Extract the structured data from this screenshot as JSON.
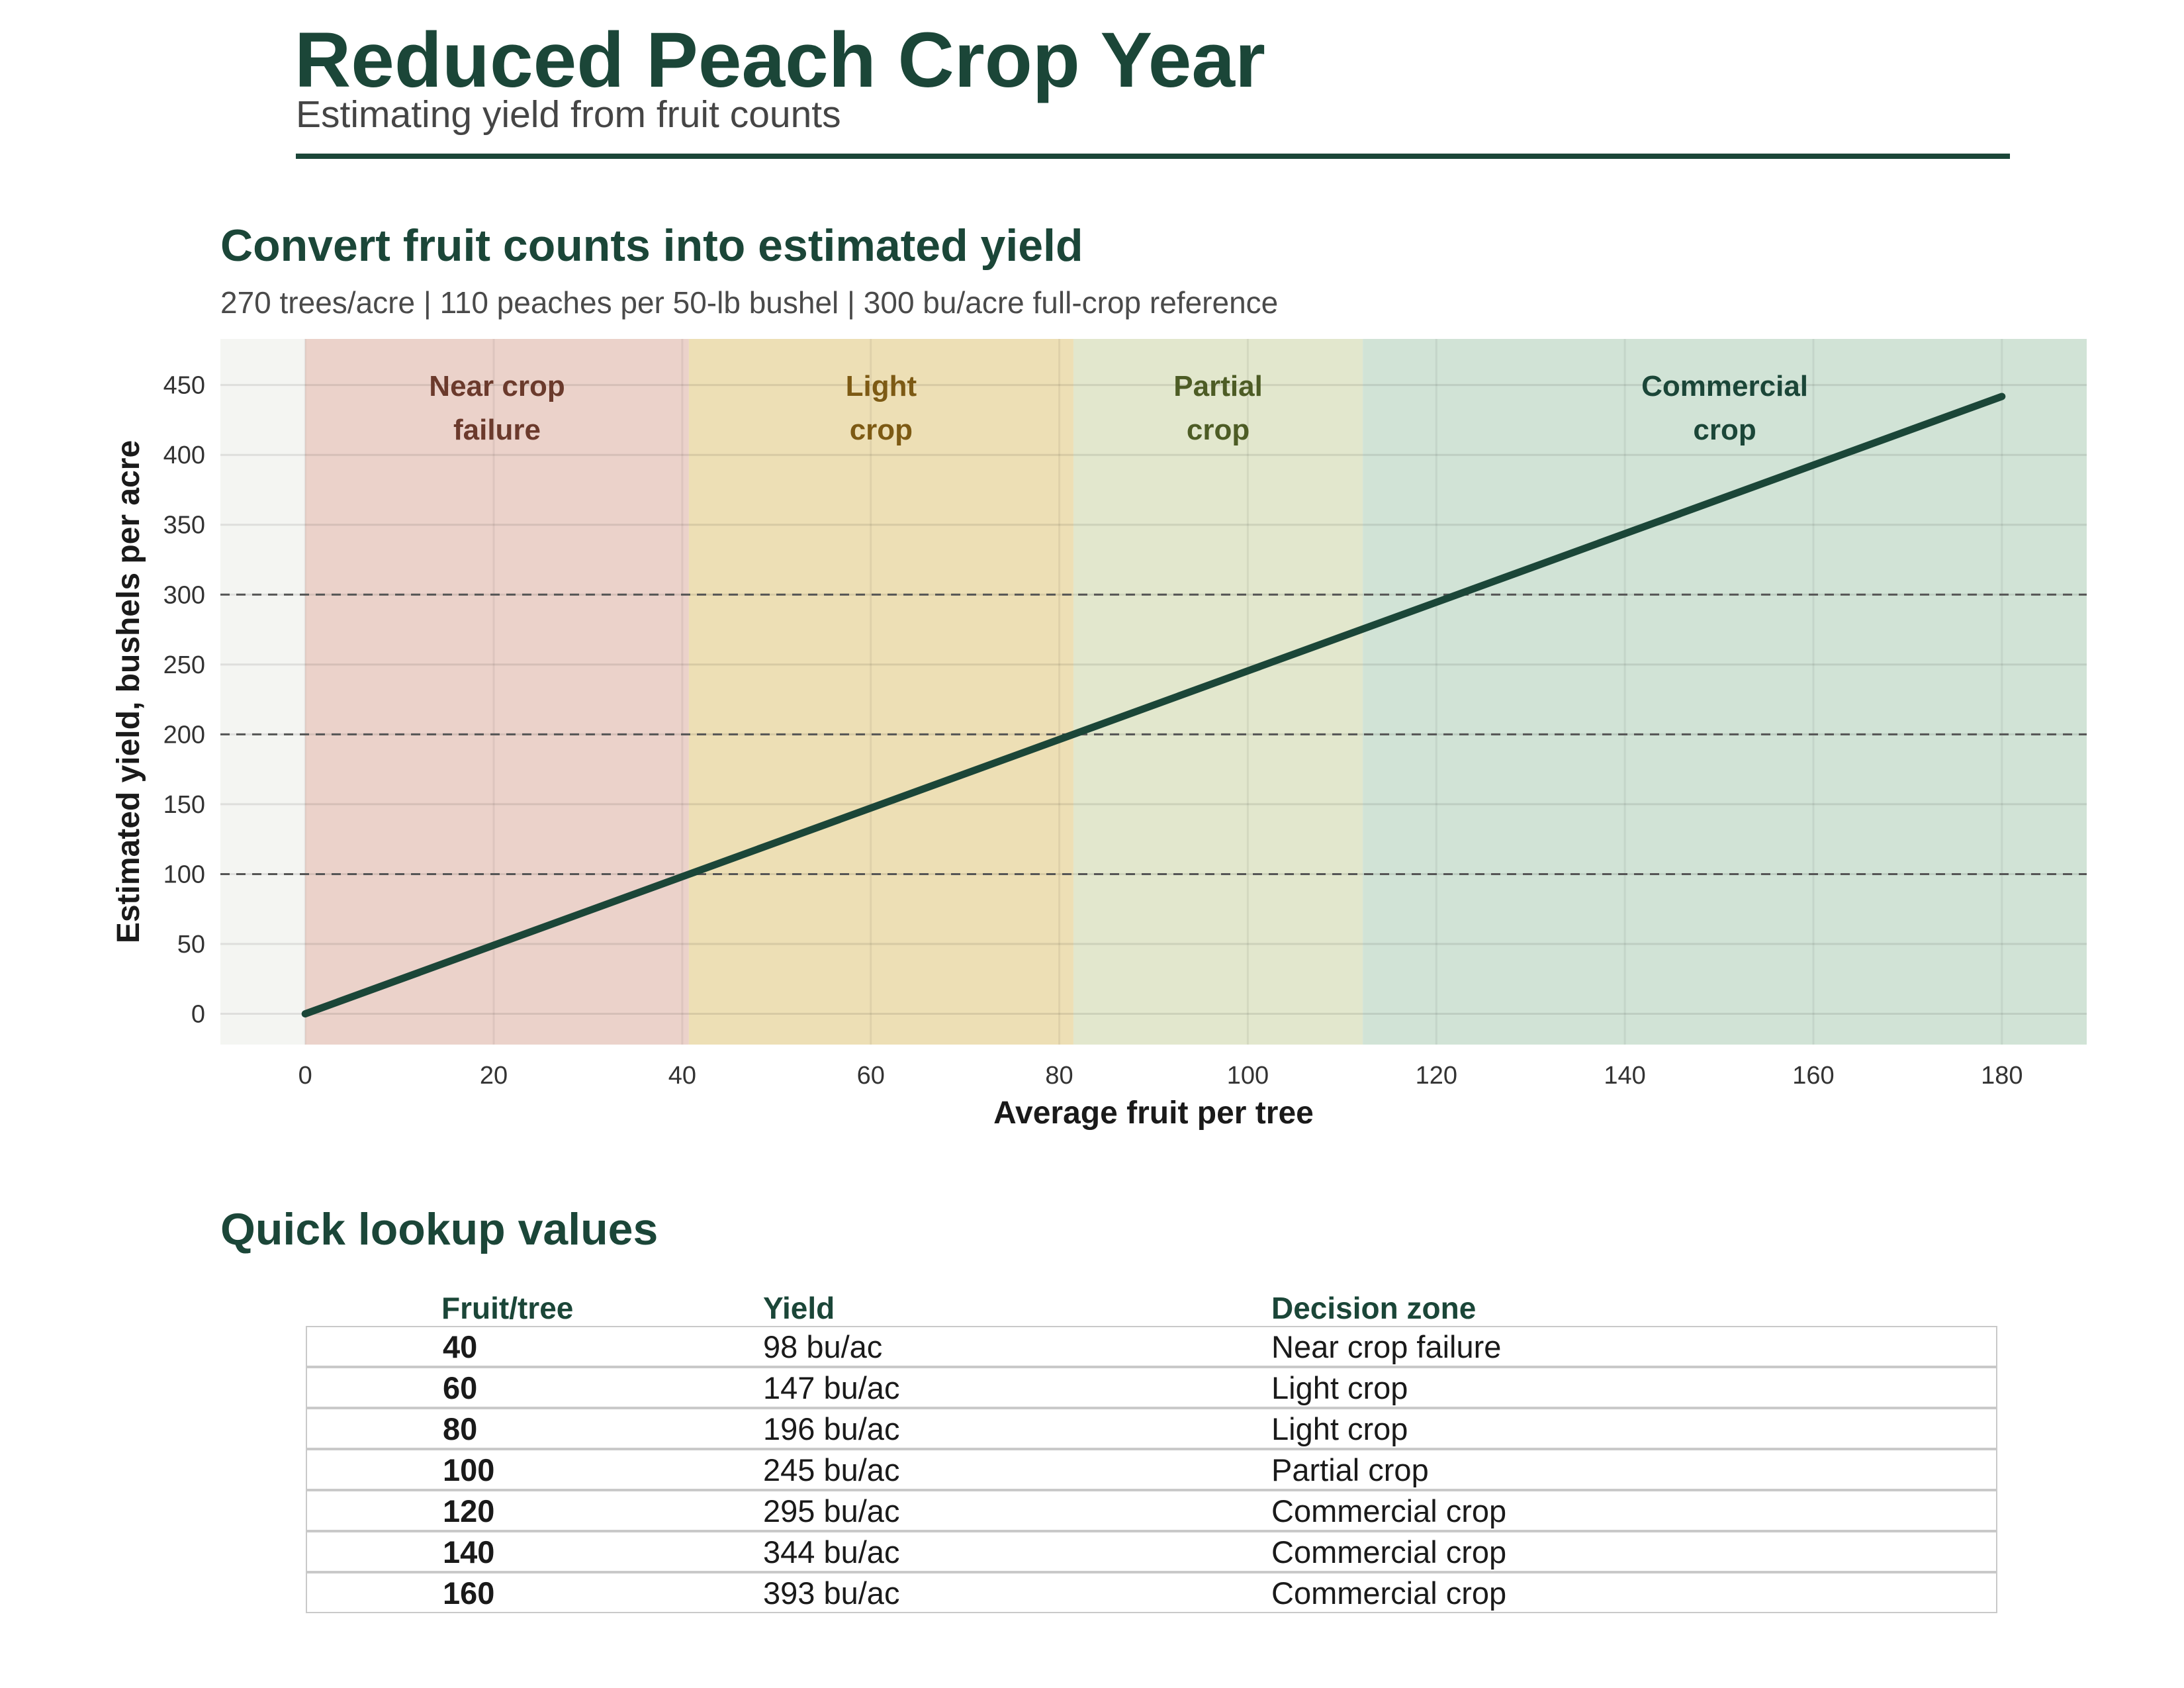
{
  "header": {
    "title": "Reduced Peach Crop Year",
    "subtitle": "Estimating yield from fruit counts"
  },
  "chart_section": {
    "title": "Convert fruit counts into estimated yield",
    "subtitle": "270 trees/acre | 110 peaches per 50-lb bushel | 300 bu/acre full-crop reference"
  },
  "colors": {
    "line": "#1b4638",
    "zone_near_failure": "#ebd2ca",
    "zone_light": "#eddfb5",
    "zone_partial": "#e2e7cd",
    "zone_commercial": "#d1e3d6",
    "outside": "#f4f5f2"
  },
  "chart_data": {
    "type": "line",
    "xlabel": "Average fruit per tree",
    "ylabel": "Estimated yield, bushels per acre",
    "xlim": [
      -9,
      189
    ],
    "ylim": [
      -22,
      483
    ],
    "xticks": [
      0,
      20,
      40,
      60,
      80,
      100,
      120,
      140,
      160,
      180
    ],
    "yticks": [
      0,
      50,
      100,
      150,
      200,
      250,
      300,
      350,
      400,
      450
    ],
    "grid": true,
    "series": [
      {
        "x": [
          0,
          180
        ],
        "y": [
          0,
          441.8
        ]
      }
    ],
    "reference_lines": [
      100,
      200,
      300
    ],
    "zones": [
      {
        "label_lines": [
          "Near crop",
          "failure"
        ],
        "x0": 0,
        "x1": 40.7,
        "color": "#ebd2ca",
        "text_color": "#6b3a2c"
      },
      {
        "label_lines": [
          "Light",
          "crop"
        ],
        "x0": 40.7,
        "x1": 81.5,
        "color": "#eddfb5",
        "text_color": "#7d5a14"
      },
      {
        "label_lines": [
          "Partial",
          "crop"
        ],
        "x0": 81.5,
        "x1": 112.2,
        "color": "#e2e7cd",
        "text_color": "#4d5c25"
      },
      {
        "label_lines": [
          "Commercial",
          "crop"
        ],
        "x0": 112.2,
        "x1": 189,
        "color": "#d1e3d6",
        "text_color": "#1b4638"
      }
    ]
  },
  "lookup": {
    "title": "Quick lookup values",
    "columns": [
      "Fruit/tree",
      "Yield",
      "Decision zone"
    ],
    "rows": [
      {
        "fruit": "40",
        "yield": "98 bu/ac",
        "zone": "Near crop failure"
      },
      {
        "fruit": "60",
        "yield": "147 bu/ac",
        "zone": "Light crop"
      },
      {
        "fruit": "80",
        "yield": "196 bu/ac",
        "zone": "Light crop"
      },
      {
        "fruit": "100",
        "yield": "245 bu/ac",
        "zone": "Partial crop"
      },
      {
        "fruit": "120",
        "yield": "295 bu/ac",
        "zone": "Commercial crop"
      },
      {
        "fruit": "140",
        "yield": "344 bu/ac",
        "zone": "Commercial crop"
      },
      {
        "fruit": "160",
        "yield": "393 bu/ac",
        "zone": "Commercial crop"
      }
    ]
  }
}
